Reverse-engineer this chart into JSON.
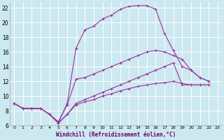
{
  "xlabel": "Windchill (Refroidissement éolien,°C)",
  "bg_color": "#cce8f0",
  "grid_color": "#ffffff",
  "line_color": "#993399",
  "xlim": [
    -0.5,
    23.5
  ],
  "ylim": [
    6,
    22.8
  ],
  "yticks": [
    6,
    8,
    10,
    12,
    14,
    16,
    18,
    20,
    22
  ],
  "xticks": [
    0,
    1,
    2,
    3,
    4,
    5,
    6,
    7,
    8,
    9,
    10,
    11,
    12,
    13,
    14,
    15,
    16,
    17,
    18,
    19,
    20,
    21,
    22,
    23
  ],
  "line3_x": [
    0,
    1,
    2,
    3,
    4,
    5,
    6,
    7,
    8,
    9,
    10,
    11,
    12,
    13,
    14,
    15,
    16,
    17,
    18,
    19,
    20,
    21,
    22
  ],
  "line3_y": [
    9.0,
    8.3,
    8.3,
    8.3,
    7.5,
    6.3,
    9.0,
    16.5,
    19.0,
    19.5,
    20.5,
    21.0,
    21.8,
    22.2,
    22.3,
    22.3,
    21.8,
    18.5,
    16.2,
    14.0,
    13.5,
    12.5,
    12.0
  ],
  "line1_x": [
    0,
    1,
    2,
    3,
    4,
    5,
    6,
    7,
    8,
    9,
    10,
    11,
    12,
    13,
    14,
    15,
    16,
    17,
    18,
    19,
    20,
    21,
    22
  ],
  "line1_y": [
    9.0,
    8.3,
    8.3,
    8.3,
    7.5,
    6.5,
    8.8,
    12.3,
    12.5,
    13.0,
    13.5,
    14.0,
    14.5,
    15.0,
    15.5,
    16.0,
    16.2,
    16.0,
    15.5,
    15.0,
    13.5,
    12.5,
    12.0
  ],
  "line2_x": [
    0,
    1,
    2,
    3,
    4,
    5,
    6,
    7,
    8,
    9,
    10,
    11,
    12,
    13,
    14,
    15,
    16,
    17,
    18,
    19,
    20,
    21,
    22
  ],
  "line2_y": [
    9.0,
    8.3,
    8.3,
    8.3,
    7.5,
    6.3,
    7.5,
    9.0,
    9.5,
    10.0,
    10.5,
    11.0,
    11.5,
    12.0,
    12.5,
    13.0,
    13.5,
    14.0,
    14.5,
    11.5,
    11.5,
    11.5,
    11.5
  ],
  "line4_x": [
    0,
    1,
    2,
    3,
    4,
    5,
    6,
    7,
    8,
    9,
    10,
    11,
    12,
    13,
    14,
    15,
    16,
    17,
    18,
    19,
    20,
    21,
    22
  ],
  "line4_y": [
    9.0,
    8.3,
    8.3,
    8.3,
    7.5,
    6.3,
    7.5,
    8.8,
    9.2,
    9.5,
    10.0,
    10.3,
    10.7,
    11.0,
    11.3,
    11.5,
    11.7,
    11.8,
    12.0,
    11.7,
    11.5,
    11.5,
    11.5
  ]
}
